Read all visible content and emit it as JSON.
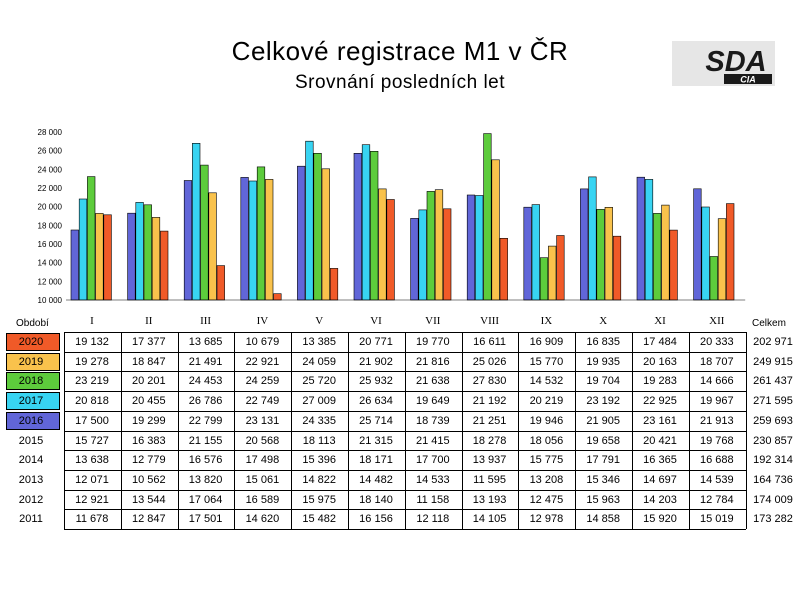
{
  "title": "Celkové registrace M1 v ČR",
  "subtitle": "Srovnání posledních let",
  "logo": {
    "main": "SDA",
    "sub": "CIA"
  },
  "table": {
    "period_label": "Období",
    "total_label": "Celkem",
    "months": [
      "I",
      "II",
      "III",
      "IV",
      "V",
      "VI",
      "VII",
      "VIII",
      "IX",
      "X",
      "XI",
      "XII"
    ],
    "rows": [
      {
        "year": "2020",
        "color": "#f05a28",
        "values": [
          "19 132",
          "17 377",
          "13 685",
          "10 679",
          "13 385",
          "20 771",
          "19 770",
          "16 611",
          "16 909",
          "16 835",
          "17 484",
          "20 333"
        ],
        "total": "202 971"
      },
      {
        "year": "2019",
        "color": "#f9c24c",
        "values": [
          "19 278",
          "18 847",
          "21 491",
          "22 921",
          "24 059",
          "21 902",
          "21 816",
          "25 026",
          "15 770",
          "19 935",
          "20 163",
          "18 707"
        ],
        "total": "249 915"
      },
      {
        "year": "2018",
        "color": "#5dcc3c",
        "values": [
          "23 219",
          "20 201",
          "24 453",
          "24 259",
          "25 720",
          "25 932",
          "21 638",
          "27 830",
          "14 532",
          "19 704",
          "19 283",
          "14 666"
        ],
        "total": "261 437"
      },
      {
        "year": "2017",
        "color": "#38d4f2",
        "values": [
          "20 818",
          "20 455",
          "26 786",
          "22 749",
          "27 009",
          "26 634",
          "19 649",
          "21 192",
          "20 219",
          "23 192",
          "22 925",
          "19 967"
        ],
        "total": "271 595"
      },
      {
        "year": "2016",
        "color": "#6166d8",
        "values": [
          "17 500",
          "19 299",
          "22 799",
          "23 131",
          "24 335",
          "25 714",
          "18 739",
          "21 251",
          "19 946",
          "21 905",
          "23 161",
          "21 913"
        ],
        "total": "259 693"
      },
      {
        "year": "2015",
        "values": [
          "15 727",
          "16 383",
          "21 155",
          "20 568",
          "18 113",
          "21 315",
          "21 415",
          "18 278",
          "18 056",
          "19 658",
          "20 421",
          "19 768"
        ],
        "total": "230 857"
      },
      {
        "year": "2014",
        "values": [
          "13 638",
          "12 779",
          "16 576",
          "17 498",
          "15 396",
          "18 171",
          "17 700",
          "13 937",
          "15 775",
          "17 791",
          "16 365",
          "16 688"
        ],
        "total": "192 314"
      },
      {
        "year": "2013",
        "values": [
          "12 071",
          "10 562",
          "13 820",
          "15 061",
          "14 822",
          "14 482",
          "14 533",
          "11 595",
          "13 208",
          "15 346",
          "14 697",
          "14 539"
        ],
        "total": "164 736"
      },
      {
        "year": "2012",
        "values": [
          "12 921",
          "13 544",
          "17 064",
          "16 589",
          "15 975",
          "18 140",
          "11 158",
          "13 193",
          "12 475",
          "15 963",
          "14 203",
          "12 784"
        ],
        "total": "174 009"
      },
      {
        "year": "2011",
        "values": [
          "11 678",
          "12 847",
          "17 501",
          "14 620",
          "15 482",
          "16 156",
          "12 118",
          "14 105",
          "12 978",
          "14 858",
          "15 920",
          "15 019"
        ],
        "total": "173 282"
      }
    ]
  },
  "chart_data": {
    "type": "bar",
    "title": "Celkové registrace M1 v ČR",
    "subtitle": "Srovnání posledních let",
    "categories": [
      "I",
      "II",
      "III",
      "IV",
      "V",
      "VI",
      "VII",
      "VIII",
      "IX",
      "X",
      "XI",
      "XII"
    ],
    "ylim": [
      10000,
      28000
    ],
    "yticks": [
      10000,
      12000,
      14000,
      16000,
      18000,
      20000,
      22000,
      24000,
      26000,
      28000
    ],
    "ytick_labels": [
      "10 000",
      "12 000",
      "14 000",
      "16 000",
      "18 000",
      "20 000",
      "22 000",
      "24 000",
      "26 000",
      "28 000"
    ],
    "grid": false,
    "legend": "table-left",
    "series": [
      {
        "name": "2016",
        "color": "#6166d8",
        "values": [
          17500,
          19299,
          22799,
          23131,
          24335,
          25714,
          18739,
          21251,
          19946,
          21905,
          23161,
          21913
        ]
      },
      {
        "name": "2017",
        "color": "#38d4f2",
        "values": [
          20818,
          20455,
          26786,
          22749,
          27009,
          26634,
          19649,
          21192,
          20219,
          23192,
          22925,
          19967
        ]
      },
      {
        "name": "2018",
        "color": "#5dcc3c",
        "values": [
          23219,
          20201,
          24453,
          24259,
          25720,
          25932,
          21638,
          27830,
          14532,
          19704,
          19283,
          14666
        ]
      },
      {
        "name": "2019",
        "color": "#f9c24c",
        "values": [
          19278,
          18847,
          21491,
          22921,
          24059,
          21902,
          21816,
          25026,
          15770,
          19935,
          20163,
          18707
        ]
      },
      {
        "name": "2020",
        "color": "#f05a28",
        "values": [
          19132,
          17377,
          13685,
          10679,
          13385,
          20771,
          19770,
          16611,
          16909,
          16835,
          17484,
          20333
        ]
      }
    ]
  }
}
